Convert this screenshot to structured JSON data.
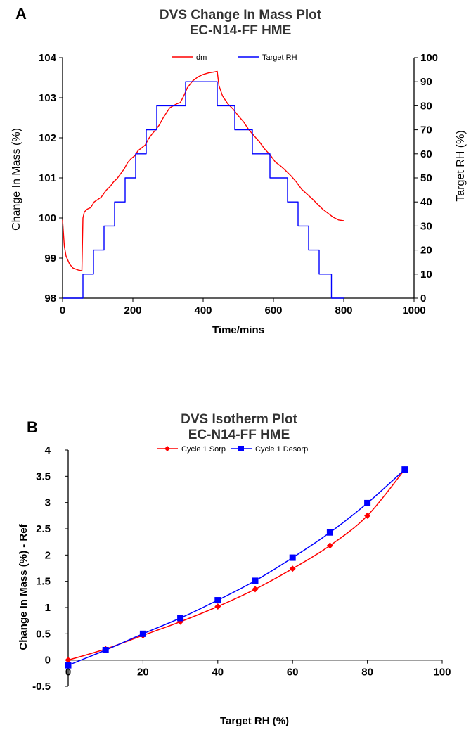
{
  "chart_data": [
    {
      "panel": "A",
      "type": "line",
      "title": "DVS Change In Mass Plot",
      "subtitle": "EC-N14-FF HME",
      "xlabel": "Time/mins",
      "ylabel": "Change In Mass (%)",
      "y2label": "Target RH (%)",
      "xlim": [
        0,
        1000
      ],
      "ylim": [
        98,
        104
      ],
      "y2lim": [
        0,
        100
      ],
      "xticks": [
        0,
        200,
        400,
        600,
        800,
        1000
      ],
      "yticks": [
        98,
        99,
        100,
        101,
        102,
        103,
        104
      ],
      "y2ticks": [
        0,
        10,
        20,
        30,
        40,
        50,
        60,
        70,
        80,
        90,
        100
      ],
      "grid": false,
      "legend": "top-center",
      "series": [
        {
          "name": "dm",
          "axis": "left",
          "color": "#ff0000",
          "x": [
            0,
            5,
            10,
            20,
            30,
            45,
            55,
            58,
            62,
            70,
            80,
            90,
            100,
            110,
            118,
            125,
            135,
            145,
            155,
            165,
            175,
            185,
            195,
            205,
            215,
            225,
            235,
            245,
            255,
            265,
            275,
            285,
            295,
            305,
            315,
            325,
            335,
            345,
            355,
            370,
            385,
            400,
            415,
            430,
            440,
            445,
            455,
            470,
            485,
            500,
            515,
            530,
            545,
            560,
            575,
            590,
            605,
            620,
            635,
            650,
            665,
            680,
            695,
            710,
            725,
            740,
            755,
            770,
            785,
            800
          ],
          "values": [
            99.95,
            99.3,
            99.05,
            98.85,
            98.75,
            98.7,
            98.68,
            100.0,
            100.15,
            100.22,
            100.26,
            100.4,
            100.46,
            100.52,
            100.62,
            100.7,
            100.78,
            100.9,
            100.98,
            101.1,
            101.22,
            101.38,
            101.48,
            101.55,
            101.68,
            101.75,
            101.82,
            101.98,
            102.1,
            102.2,
            102.32,
            102.48,
            102.62,
            102.75,
            102.8,
            102.85,
            102.88,
            103.05,
            103.25,
            103.42,
            103.52,
            103.58,
            103.62,
            103.64,
            103.66,
            103.3,
            103.05,
            102.85,
            102.72,
            102.55,
            102.4,
            102.2,
            102.05,
            101.9,
            101.72,
            101.58,
            101.4,
            101.3,
            101.18,
            101.05,
            100.9,
            100.72,
            100.6,
            100.48,
            100.35,
            100.22,
            100.12,
            100.02,
            99.95,
            99.93
          ]
        },
        {
          "name": "Target RH",
          "axis": "right",
          "color": "#0000ff",
          "x": [
            0,
            58,
            58,
            88,
            88,
            118,
            118,
            148,
            148,
            178,
            178,
            208,
            208,
            238,
            238,
            268,
            268,
            298,
            298,
            350,
            350,
            440,
            440,
            490,
            490,
            540,
            540,
            590,
            590,
            640,
            640,
            670,
            670,
            700,
            700,
            730,
            730,
            765,
            765,
            800
          ],
          "values": [
            0,
            0,
            10,
            10,
            20,
            20,
            30,
            30,
            40,
            40,
            50,
            50,
            60,
            60,
            70,
            70,
            80,
            80,
            80,
            80,
            90,
            90,
            80,
            80,
            70,
            70,
            60,
            60,
            50,
            50,
            40,
            40,
            30,
            30,
            20,
            20,
            10,
            10,
            0,
            0
          ]
        }
      ]
    },
    {
      "panel": "B",
      "type": "line",
      "title": "DVS Isotherm Plot",
      "subtitle": "EC-N14-FF HME",
      "xlabel": "Target RH (%)",
      "ylabel": "Change In Mass (%) - Ref",
      "xlim": [
        0,
        100
      ],
      "ylim": [
        -0.5,
        4
      ],
      "xticks": [
        0,
        20,
        40,
        60,
        80,
        100
      ],
      "yticks": [
        -0.5,
        0,
        0.5,
        1,
        1.5,
        2,
        2.5,
        3,
        3.5,
        4
      ],
      "grid": false,
      "legend": "top-center",
      "series": [
        {
          "name": "Cycle 1 Sorp",
          "color": "#ff0000",
          "marker": "diamond",
          "x": [
            0,
            10,
            20,
            30,
            40,
            50,
            60,
            70,
            80,
            90
          ],
          "values": [
            0.0,
            0.21,
            0.47,
            0.73,
            1.02,
            1.35,
            1.74,
            2.18,
            2.75,
            3.63
          ]
        },
        {
          "name": "Cycle 1 Desorp",
          "color": "#0000ff",
          "marker": "square",
          "x": [
            0,
            10,
            20,
            30,
            40,
            50,
            60,
            70,
            80,
            90
          ],
          "values": [
            -0.1,
            0.19,
            0.5,
            0.8,
            1.14,
            1.51,
            1.95,
            2.43,
            2.99,
            3.63
          ]
        }
      ]
    }
  ]
}
